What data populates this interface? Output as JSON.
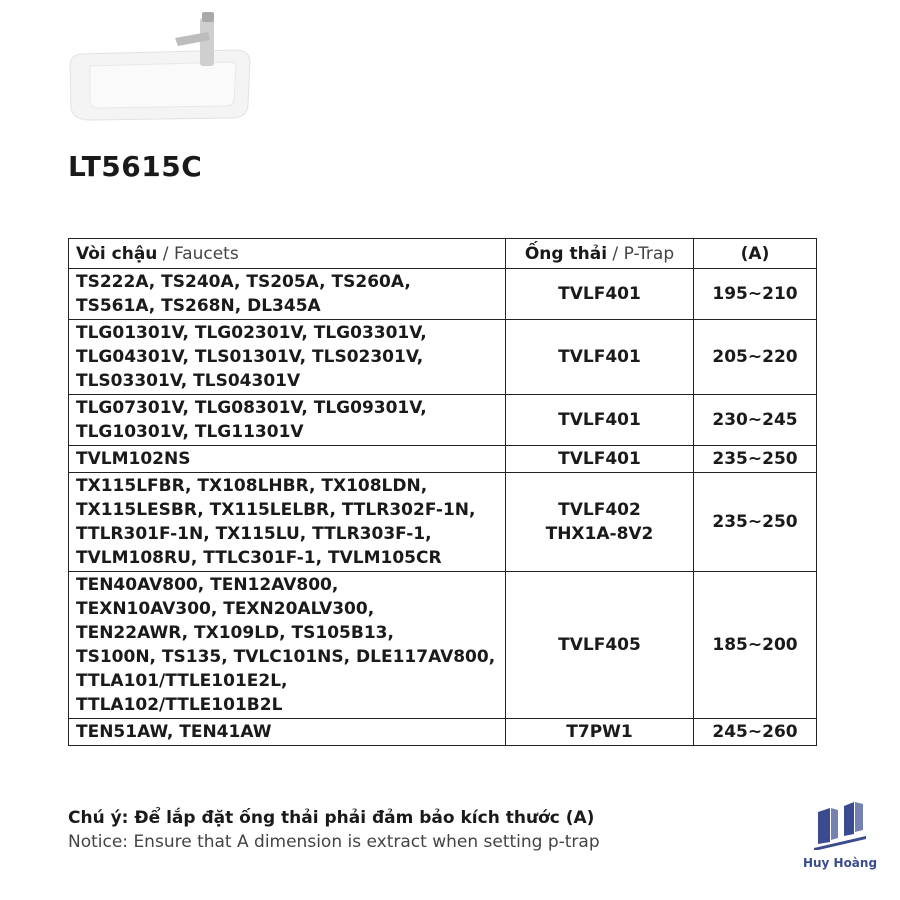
{
  "product": {
    "model": "LT5615C"
  },
  "table": {
    "headers": {
      "faucets_vi": "Vòi chậu",
      "faucets_sep": " / ",
      "faucets_en": "Faucets",
      "ptrap_vi": "Ống thải",
      "ptrap_sep": " / ",
      "ptrap_en": "P-Trap",
      "a": "(A)"
    },
    "rows": [
      {
        "faucets": [
          "TS222A, TS240A, TS205A, TS260A,",
          "TS561A, TS268N, DL345A"
        ],
        "ptrap": [
          "TVLF401"
        ],
        "a": "195~210"
      },
      {
        "faucets": [
          "TLG01301V, TLG02301V, TLG03301V,",
          "TLG04301V, TLS01301V, TLS02301V,",
          "TLS03301V, TLS04301V"
        ],
        "ptrap": [
          "TVLF401"
        ],
        "a": "205~220"
      },
      {
        "faucets": [
          "TLG07301V, TLG08301V, TLG09301V,",
          "TLG10301V, TLG11301V"
        ],
        "ptrap": [
          "TVLF401"
        ],
        "a": "230~245"
      },
      {
        "faucets": [
          "TVLM102NS"
        ],
        "ptrap": [
          "TVLF401"
        ],
        "a": "235~250"
      },
      {
        "faucets": [
          "TX115LFBR, TX108LHBR, TX108LDN,",
          "TX115LESBR, TX115LELBR,  TTLR302F-1N,",
          "TTLR301F-1N, TX115LU, TTLR303F-1,",
          "TVLM108RU, TTLC301F-1, TVLM105CR"
        ],
        "ptrap": [
          "TVLF402",
          "THX1A-8V2"
        ],
        "a": "235~250"
      },
      {
        "faucets": [
          "TEN40AV800, TEN12AV800,",
          "TEXN10AV300, TEXN20ALV300,",
          "TEN22AWR, TX109LD, TS105B13,",
          "TS100N, TS135, TVLC101NS, DLE117AV800,",
          "TTLA101/TTLE101E2L,",
          "TTLA102/TTLE101B2L"
        ],
        "ptrap": [
          "TVLF405"
        ],
        "a": "185~200"
      },
      {
        "faucets": [
          "TEN51AW, TEN41AW"
        ],
        "ptrap": [
          "T7PW1"
        ],
        "a": "245~260"
      }
    ]
  },
  "note": {
    "vi": "Chú ý: Để lắp đặt ống thải phải đảm bảo kích thước (A)",
    "en": "Notice: Ensure that A dimension is extract when setting p-trap"
  },
  "logo": {
    "text": "Huy Hoàng",
    "color": "#3b4b8f"
  }
}
